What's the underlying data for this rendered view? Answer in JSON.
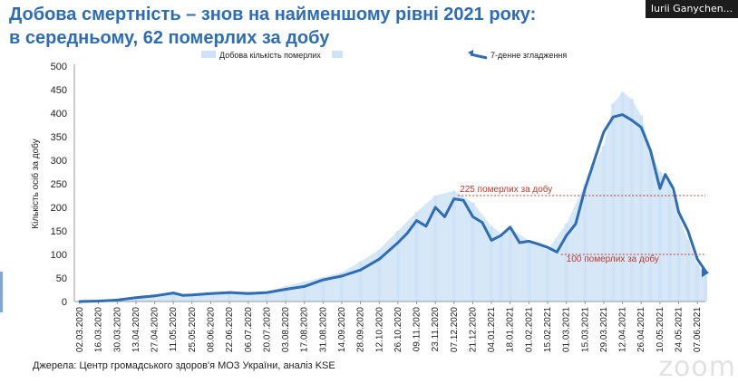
{
  "header": {
    "title_line1": "Добова смертність – знов на найменшому рівні 2021 року:",
    "title_line2": "в середньому, 62 померлих за добу"
  },
  "participant": {
    "name": "Iurii Ganychen..."
  },
  "footer": {
    "source": "Джерела: Центр громадського здоров'я МОЗ України, аналіз KSE",
    "watermark": "zoom"
  },
  "colors": {
    "bars": "#cfe3f7",
    "line": "#2e6db4",
    "reference": "#c0392b",
    "title": "#2e6db4"
  },
  "chart_data": {
    "type": "bar",
    "title": "",
    "xlabel": "",
    "ylabel": "Кількість осіб за добу",
    "ylim": [
      0,
      500
    ],
    "yticks": [
      0,
      50,
      100,
      150,
      200,
      250,
      300,
      350,
      400,
      450,
      500
    ],
    "grid": false,
    "legend_position": "top",
    "x_date_range": [
      "2020-03-02",
      "2021-06-13"
    ],
    "x_tick_labels": [
      "02.03.2020",
      "16.03.2020",
      "30.03.2020",
      "13.04.2020",
      "27.04.2020",
      "11.05.2020",
      "25.05.2020",
      "08.06.2020",
      "22.06.2020",
      "06.07.2020",
      "20.07.2020",
      "03.08.2020",
      "17.08.2020",
      "31.08.2020",
      "14.09.2020",
      "28.09.2020",
      "12.10.2020",
      "26.10.2020",
      "09.11.2020",
      "23.11.2020",
      "07.12.2020",
      "21.12.2020",
      "04.01.2021",
      "18.01.2021",
      "01.02.2021",
      "15.02.2021",
      "01.03.2021",
      "15.03.2021",
      "29.03.2021",
      "12.04.2021",
      "26.04.2021",
      "10.05.2021",
      "24.05.2021",
      "07.06.2021"
    ],
    "series": [
      {
        "name": "Добова кількість померлих",
        "type": "bar",
        "x": [
          "2020-03-02",
          "2020-03-30",
          "2020-04-13",
          "2020-05-11",
          "2020-05-25",
          "2020-06-22",
          "2020-07-20",
          "2020-08-03",
          "2020-08-17",
          "2020-08-31",
          "2020-09-14",
          "2020-09-28",
          "2020-10-12",
          "2020-10-26",
          "2020-11-09",
          "2020-11-23",
          "2020-12-07",
          "2020-12-21",
          "2021-01-04",
          "2021-01-11",
          "2021-01-18",
          "2021-02-01",
          "2021-02-15",
          "2021-03-01",
          "2021-03-15",
          "2021-03-29",
          "2021-04-05",
          "2021-04-12",
          "2021-04-19",
          "2021-04-26",
          "2021-05-03",
          "2021-05-10",
          "2021-05-17",
          "2021-05-24",
          "2021-05-31",
          "2021-06-07",
          "2021-06-13"
        ],
        "values": [
          0,
          5,
          11,
          18,
          14,
          22,
          20,
          33,
          42,
          52,
          62,
          85,
          110,
          150,
          190,
          225,
          235,
          210,
          160,
          145,
          155,
          130,
          110,
          165,
          250,
          330,
          420,
          445,
          430,
          395,
          320,
          275,
          250,
          180,
          130,
          80,
          55
        ]
      },
      {
        "name": "7-денне згладження",
        "type": "line",
        "x": [
          "2020-03-02",
          "2020-03-16",
          "2020-03-30",
          "2020-04-13",
          "2020-04-27",
          "2020-05-11",
          "2020-05-18",
          "2020-05-25",
          "2020-06-08",
          "2020-06-22",
          "2020-07-06",
          "2020-07-20",
          "2020-08-03",
          "2020-08-17",
          "2020-08-31",
          "2020-09-14",
          "2020-09-28",
          "2020-10-12",
          "2020-10-26",
          "2020-11-02",
          "2020-11-09",
          "2020-11-16",
          "2020-11-23",
          "2020-11-30",
          "2020-12-07",
          "2020-12-14",
          "2020-12-21",
          "2020-12-28",
          "2021-01-04",
          "2021-01-11",
          "2021-01-18",
          "2021-01-25",
          "2021-02-01",
          "2021-02-08",
          "2021-02-15",
          "2021-02-22",
          "2021-03-01",
          "2021-03-08",
          "2021-03-15",
          "2021-03-22",
          "2021-03-29",
          "2021-04-05",
          "2021-04-12",
          "2021-04-19",
          "2021-04-26",
          "2021-05-03",
          "2021-05-10",
          "2021-05-14",
          "2021-05-17",
          "2021-05-20",
          "2021-05-24",
          "2021-05-31",
          "2021-06-07",
          "2021-06-13"
        ],
        "values": [
          0,
          1,
          3,
          8,
          12,
          18,
          13,
          14,
          17,
          19,
          17,
          19,
          26,
          32,
          46,
          54,
          67,
          90,
          125,
          145,
          172,
          160,
          200,
          180,
          218,
          215,
          180,
          168,
          130,
          140,
          158,
          125,
          128,
          122,
          115,
          105,
          140,
          165,
          240,
          300,
          360,
          392,
          397,
          385,
          370,
          320,
          240,
          270,
          255,
          240,
          190,
          150,
          90,
          65
        ]
      }
    ],
    "reference_lines": [
      {
        "value": 225,
        "label": "225 померлих за добу"
      },
      {
        "value": 100,
        "label": "100 померлих за добу"
      }
    ]
  }
}
